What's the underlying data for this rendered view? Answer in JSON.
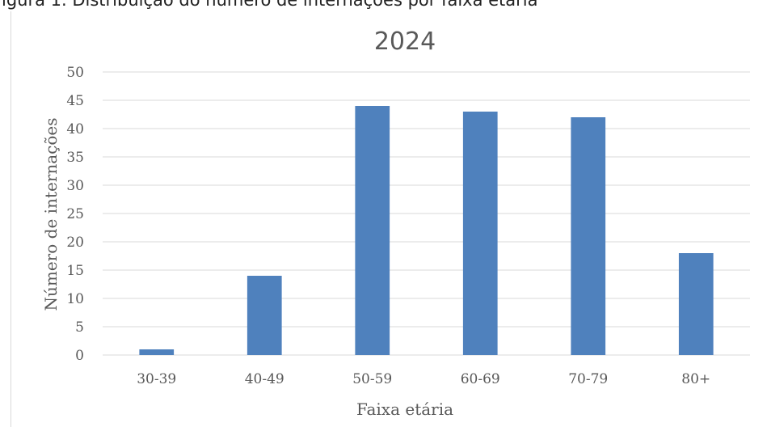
{
  "figure_caption": "igura 1. Distribuição do número de internações por faixa etária",
  "chart_data": {
    "type": "bar",
    "title": "2024",
    "categories": [
      "30-39",
      "40-49",
      "50-59",
      "60-69",
      "70-79",
      "80+"
    ],
    "values": [
      1,
      14,
      44,
      43,
      42,
      18
    ],
    "xlabel": "Faixa etária",
    "ylabel": "Número de internações",
    "ylim": [
      0,
      50
    ],
    "yticks": [
      0,
      5,
      10,
      15,
      20,
      25,
      30,
      35,
      40,
      45,
      50
    ],
    "grid": true,
    "legend": "none",
    "colors": {
      "bar": "#4f81bd",
      "grid": "#d9d9d9",
      "text": "#595959"
    }
  }
}
